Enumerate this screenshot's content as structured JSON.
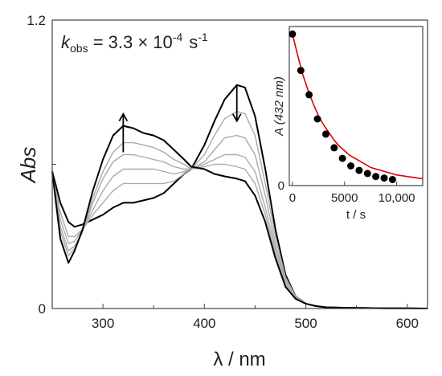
{
  "chart_data": [
    {
      "type": "line",
      "title": "",
      "xlabel": "λ / nm",
      "ylabel": "Abs",
      "xlim": [
        250,
        620
      ],
      "ylim": [
        0,
        1.2
      ],
      "x_ticks": [
        300,
        400,
        500,
        600
      ],
      "x_tick_labels": [
        "300",
        "400",
        "500",
        "600"
      ],
      "y_ticks": [
        0,
        1.2
      ],
      "y_tick_labels": [
        "0",
        "1.2"
      ],
      "grid": false,
      "annotation": {
        "k_symbol": "k",
        "k_subscript": "obs",
        "k_value": " = 3.3 × 10",
        "k_exponent": "-4",
        "k_unit": "s",
        "k_unit_exponent": "-1"
      },
      "arrows": [
        {
          "direction": "up",
          "x": 320,
          "y_from": 0.65,
          "y_to": 0.81
        },
        {
          "direction": "down",
          "x": 432,
          "y_from": 0.93,
          "y_to": 0.78
        }
      ],
      "series": [
        {
          "color": "#000000",
          "x": [
            250,
            258,
            266,
            272,
            280,
            290,
            300,
            310,
            320,
            330,
            340,
            350,
            360,
            370,
            380,
            387,
            400,
            410,
            420,
            432,
            440,
            450,
            460,
            470,
            480,
            490,
            500,
            510,
            520,
            540,
            560,
            580,
            600,
            620
          ],
          "y": [
            0.57,
            0.44,
            0.36,
            0.34,
            0.35,
            0.37,
            0.39,
            0.42,
            0.44,
            0.44,
            0.45,
            0.46,
            0.48,
            0.52,
            0.56,
            0.58,
            0.68,
            0.78,
            0.87,
            0.93,
            0.92,
            0.8,
            0.58,
            0.33,
            0.14,
            0.05,
            0.02,
            0.01,
            0.005,
            0.003,
            0.002,
            0.001,
            0.001,
            0.0
          ]
        },
        {
          "color": "#aaaaaa",
          "x": [
            250,
            258,
            266,
            272,
            280,
            290,
            300,
            310,
            320,
            330,
            340,
            350,
            360,
            370,
            380,
            387,
            400,
            410,
            420,
            432,
            440,
            450,
            460,
            470,
            480,
            490,
            500,
            510,
            520,
            540,
            560,
            580,
            600,
            620
          ],
          "y": [
            0.56,
            0.4,
            0.3,
            0.3,
            0.33,
            0.39,
            0.44,
            0.49,
            0.52,
            0.52,
            0.52,
            0.52,
            0.52,
            0.53,
            0.56,
            0.58,
            0.64,
            0.72,
            0.79,
            0.82,
            0.81,
            0.72,
            0.52,
            0.3,
            0.13,
            0.05,
            0.02,
            0.01,
            0.005,
            0.003,
            0.002,
            0.001,
            0.001,
            0.0
          ]
        },
        {
          "color": "#aaaaaa",
          "x": [
            250,
            258,
            266,
            272,
            280,
            290,
            300,
            310,
            320,
            330,
            340,
            350,
            360,
            370,
            380,
            387,
            400,
            410,
            420,
            432,
            440,
            450,
            460,
            470,
            480,
            490,
            500,
            510,
            520,
            540,
            560,
            580,
            600,
            620
          ],
          "y": [
            0.56,
            0.37,
            0.27,
            0.28,
            0.33,
            0.41,
            0.49,
            0.55,
            0.58,
            0.58,
            0.58,
            0.58,
            0.57,
            0.56,
            0.57,
            0.58,
            0.61,
            0.66,
            0.71,
            0.72,
            0.71,
            0.64,
            0.47,
            0.27,
            0.12,
            0.05,
            0.02,
            0.01,
            0.005,
            0.003,
            0.002,
            0.001,
            0.001,
            0.0
          ]
        },
        {
          "color": "#aaaaaa",
          "x": [
            250,
            258,
            266,
            272,
            280,
            290,
            300,
            310,
            320,
            330,
            340,
            350,
            360,
            370,
            380,
            387,
            400,
            410,
            420,
            432,
            440,
            450,
            460,
            470,
            480,
            490,
            500,
            510,
            520,
            540,
            560,
            580,
            600,
            620
          ],
          "y": [
            0.56,
            0.34,
            0.24,
            0.26,
            0.32,
            0.44,
            0.54,
            0.61,
            0.64,
            0.64,
            0.63,
            0.62,
            0.61,
            0.59,
            0.58,
            0.58,
            0.6,
            0.62,
            0.64,
            0.64,
            0.63,
            0.57,
            0.42,
            0.25,
            0.11,
            0.04,
            0.02,
            0.01,
            0.005,
            0.003,
            0.002,
            0.001,
            0.001,
            0.0
          ]
        },
        {
          "color": "#aaaaaa",
          "x": [
            250,
            258,
            266,
            272,
            280,
            290,
            300,
            310,
            320,
            330,
            340,
            350,
            360,
            370,
            380,
            387,
            400,
            410,
            420,
            432,
            440,
            450,
            460,
            470,
            480,
            490,
            500,
            510,
            520,
            540,
            560,
            580,
            600,
            620
          ],
          "y": [
            0.56,
            0.32,
            0.22,
            0.25,
            0.32,
            0.46,
            0.57,
            0.65,
            0.69,
            0.69,
            0.68,
            0.67,
            0.65,
            0.62,
            0.6,
            0.58,
            0.59,
            0.6,
            0.6,
            0.59,
            0.58,
            0.52,
            0.39,
            0.23,
            0.1,
            0.04,
            0.02,
            0.01,
            0.005,
            0.003,
            0.002,
            0.001,
            0.001,
            0.0
          ]
        },
        {
          "color": "#000000",
          "x": [
            250,
            258,
            266,
            272,
            280,
            290,
            300,
            310,
            320,
            330,
            340,
            350,
            360,
            370,
            380,
            387,
            400,
            410,
            420,
            432,
            440,
            450,
            460,
            470,
            480,
            490,
            500,
            510,
            520,
            540,
            560,
            580,
            600,
            620
          ],
          "y": [
            0.57,
            0.29,
            0.19,
            0.24,
            0.33,
            0.49,
            0.62,
            0.72,
            0.76,
            0.75,
            0.73,
            0.72,
            0.7,
            0.66,
            0.62,
            0.59,
            0.58,
            0.56,
            0.55,
            0.54,
            0.53,
            0.47,
            0.36,
            0.21,
            0.09,
            0.04,
            0.02,
            0.01,
            0.005,
            0.003,
            0.002,
            0.001,
            0.001,
            0.0
          ]
        }
      ]
    },
    {
      "type": "scatter",
      "title": "",
      "xlabel": "t / s",
      "ylabel": "A (432 nm)",
      "xlim": [
        -300,
        12500
      ],
      "ylim": [
        0,
        1.05
      ],
      "x_ticks": [
        0,
        5000,
        10000
      ],
      "x_tick_labels": [
        "0",
        "5000",
        "10,000"
      ],
      "y_ticks": [
        0
      ],
      "y_tick_labels": [
        "0"
      ],
      "grid": false,
      "series": [
        {
          "color": "#000000",
          "x": [
            0,
            800,
            1600,
            2400,
            3200,
            4000,
            4800,
            5600,
            6400,
            7200,
            8000,
            8800,
            9600
          ],
          "y": [
            1.0,
            0.76,
            0.6,
            0.44,
            0.34,
            0.25,
            0.18,
            0.13,
            0.1,
            0.08,
            0.06,
            0.05,
            0.04
          ]
        },
        {
          "color": "#dd0000",
          "x": [
            0,
            500,
            1000,
            1500,
            2000,
            2500,
            3000,
            3500,
            4000,
            4500,
            5000,
            5500,
            6000,
            6500,
            7000,
            7500,
            8000,
            8500,
            9000,
            9500,
            10000,
            10500,
            11000,
            11500,
            12000,
            12500
          ],
          "y": [
            1.0,
            0.86,
            0.73,
            0.63,
            0.54,
            0.46,
            0.4,
            0.35,
            0.3,
            0.26,
            0.23,
            0.2,
            0.18,
            0.16,
            0.14,
            0.12,
            0.11,
            0.1,
            0.09,
            0.08,
            0.07,
            0.065,
            0.06,
            0.055,
            0.05,
            0.045
          ]
        }
      ]
    }
  ]
}
